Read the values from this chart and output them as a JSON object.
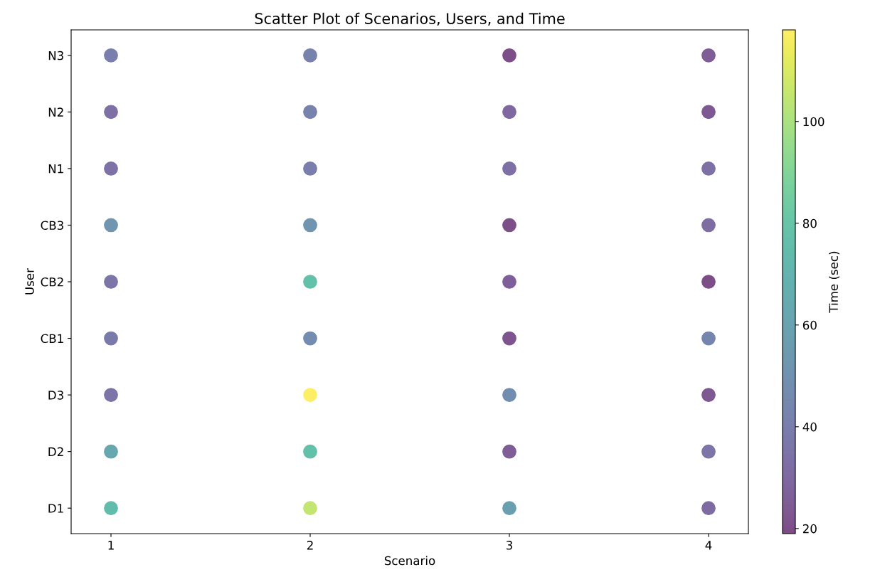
{
  "chart_data": {
    "type": "scatter",
    "orientation": "horizontal",
    "title": "Scatter Plot of Scenarios, Users, and Time",
    "xlabel": "Scenario",
    "ylabel": "User",
    "clabel": "Time (sec)",
    "categories": [
      "N3",
      "N2",
      "N1",
      "CB3",
      "CB2",
      "CB1",
      "D3",
      "D2",
      "D1"
    ],
    "xlim": [
      0.8,
      4.2
    ],
    "xticks": [
      1,
      2,
      3,
      4
    ],
    "clim": [
      19,
      118
    ],
    "cticks": [
      20,
      40,
      60,
      80,
      100
    ],
    "marker": "circle",
    "grid": false,
    "legend": false,
    "series": [
      {
        "values": [
          1,
          1,
          1,
          1,
          1,
          1,
          1,
          1,
          1
        ],
        "cvalues": [
          40,
          33,
          34,
          52,
          36,
          38,
          35,
          62,
          75
        ],
        "colors": [
          "#797eac",
          "#7e6fa5",
          "#7d71a6",
          "#6f95b0",
          "#7c75a8",
          "#7a7aaa",
          "#7d74a7",
          "#67a7b0",
          "#62bcac"
        ]
      },
      {
        "values": [
          2,
          2,
          2,
          2,
          2,
          2,
          2,
          2,
          2
        ],
        "cvalues": [
          42,
          42,
          40,
          52,
          78,
          47,
          118,
          78,
          105
        ],
        "colors": [
          "#7782ad",
          "#7782ad",
          "#797eac",
          "#6f95b0",
          "#64c1a9",
          "#738caf",
          "#feee66",
          "#64c1a9",
          "#c2e671"
        ]
      },
      {
        "values": [
          3,
          3,
          3,
          3,
          3,
          3,
          3,
          3,
          3
        ],
        "cvalues": [
          20,
          30,
          33,
          20,
          26,
          22,
          48,
          25,
          58
        ],
        "colors": [
          "#7d4f89",
          "#7f68a0",
          "#7e6fa5",
          "#7d4f89",
          "#7f5f99",
          "#7e548f",
          "#728daf",
          "#7f5d96",
          "#6a9fb0"
        ]
      },
      {
        "values": [
          4,
          4,
          4,
          4,
          4,
          4,
          4,
          4,
          4
        ],
        "cvalues": [
          25,
          23,
          33,
          32,
          19,
          43,
          23,
          35,
          31
        ],
        "colors": [
          "#7f5d96",
          "#7e5892",
          "#7e6fa5",
          "#7e6da3",
          "#7c4d87",
          "#7685ae",
          "#7e5892",
          "#7d74a7",
          "#7e6ba2"
        ]
      }
    ]
  }
}
